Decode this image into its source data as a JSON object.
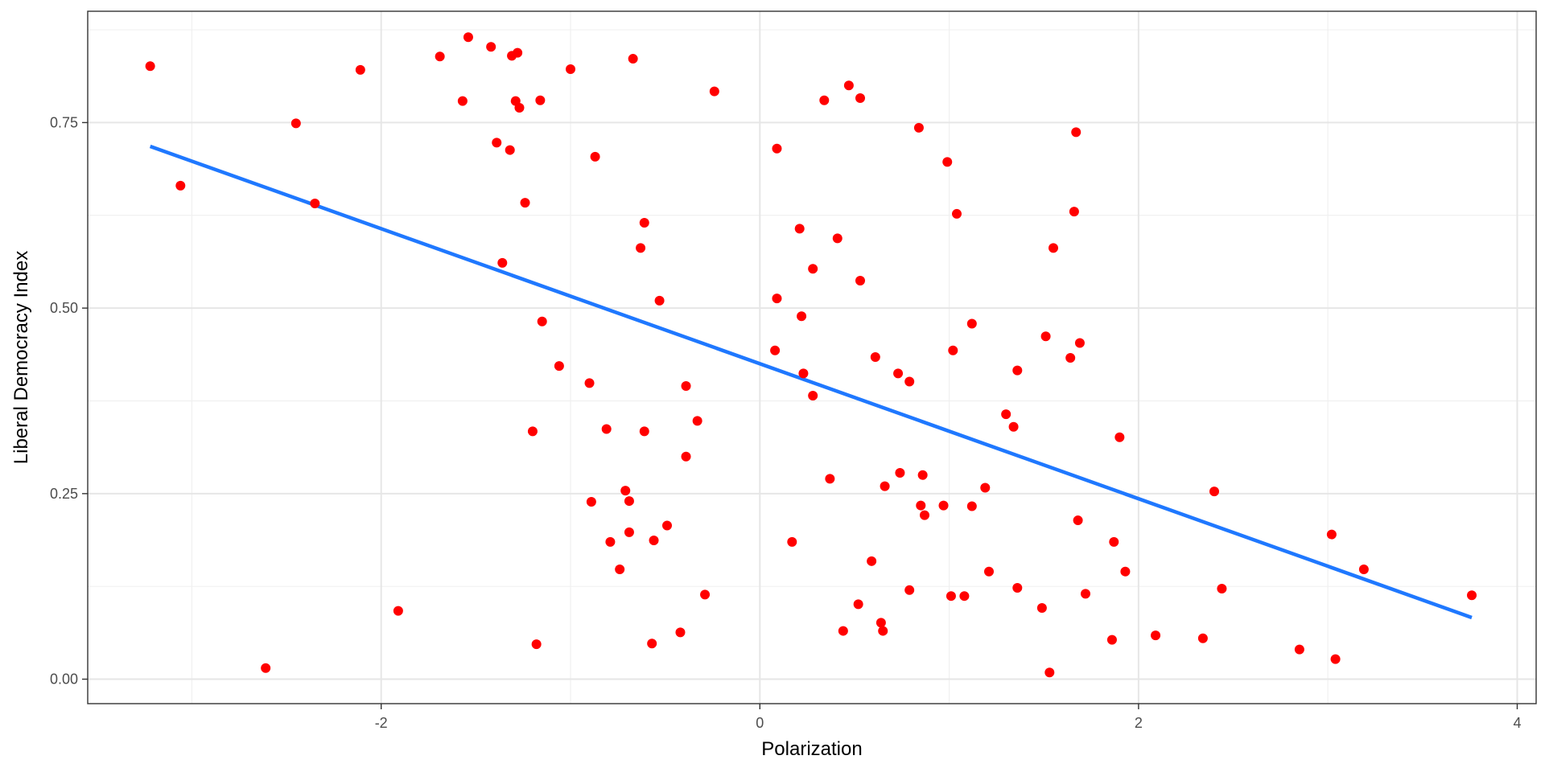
{
  "chart_data": {
    "type": "scatter",
    "xlabel": "Polarization",
    "ylabel": "Liberal Democracy Index",
    "xlim": [
      -3.55,
      4.1
    ],
    "ylim": [
      -0.033,
      0.9
    ],
    "x_ticks": [
      -2,
      0,
      2,
      4
    ],
    "x_tick_labels": [
      "-2",
      "0",
      "2",
      "4"
    ],
    "y_ticks": [
      0,
      0.25,
      0.5,
      0.75
    ],
    "y_tick_labels": [
      "0.00",
      "0.25",
      "0.50",
      "0.75"
    ],
    "grid": true,
    "point_color": "#ff0000",
    "line_color": "#1f78ff",
    "trend_line": {
      "x": [
        -3.22,
        3.76
      ],
      "y": [
        0.718,
        0.083
      ]
    },
    "points": [
      {
        "x": -3.22,
        "y": 0.826
      },
      {
        "x": -3.06,
        "y": 0.665
      },
      {
        "x": -2.61,
        "y": 0.015
      },
      {
        "x": -2.45,
        "y": 0.749
      },
      {
        "x": -2.35,
        "y": 0.641
      },
      {
        "x": -2.11,
        "y": 0.821
      },
      {
        "x": -1.91,
        "y": 0.092
      },
      {
        "x": -1.69,
        "y": 0.839
      },
      {
        "x": -1.57,
        "y": 0.779
      },
      {
        "x": -1.54,
        "y": 0.865
      },
      {
        "x": -1.42,
        "y": 0.852
      },
      {
        "x": -1.39,
        "y": 0.723
      },
      {
        "x": -1.36,
        "y": 0.561
      },
      {
        "x": -1.32,
        "y": 0.713
      },
      {
        "x": -1.31,
        "y": 0.84
      },
      {
        "x": -1.29,
        "y": 0.779
      },
      {
        "x": -1.28,
        "y": 0.844
      },
      {
        "x": -1.27,
        "y": 0.77
      },
      {
        "x": -1.24,
        "y": 0.642
      },
      {
        "x": -1.2,
        "y": 0.334
      },
      {
        "x": -1.18,
        "y": 0.047
      },
      {
        "x": -1.16,
        "y": 0.78
      },
      {
        "x": -1.15,
        "y": 0.482
      },
      {
        "x": -1.06,
        "y": 0.422
      },
      {
        "x": -1.0,
        "y": 0.822
      },
      {
        "x": -0.9,
        "y": 0.399
      },
      {
        "x": -0.89,
        "y": 0.239
      },
      {
        "x": -0.87,
        "y": 0.704
      },
      {
        "x": -0.81,
        "y": 0.337
      },
      {
        "x": -0.79,
        "y": 0.185
      },
      {
        "x": -0.74,
        "y": 0.148
      },
      {
        "x": -0.71,
        "y": 0.254
      },
      {
        "x": -0.69,
        "y": 0.24
      },
      {
        "x": -0.69,
        "y": 0.198
      },
      {
        "x": -0.67,
        "y": 0.836
      },
      {
        "x": -0.63,
        "y": 0.581
      },
      {
        "x": -0.61,
        "y": 0.615
      },
      {
        "x": -0.61,
        "y": 0.334
      },
      {
        "x": -0.57,
        "y": 0.048
      },
      {
        "x": -0.56,
        "y": 0.187
      },
      {
        "x": -0.53,
        "y": 0.51
      },
      {
        "x": -0.49,
        "y": 0.207
      },
      {
        "x": -0.42,
        "y": 0.063
      },
      {
        "x": -0.39,
        "y": 0.395
      },
      {
        "x": -0.39,
        "y": 0.3
      },
      {
        "x": -0.33,
        "y": 0.348
      },
      {
        "x": -0.29,
        "y": 0.114
      },
      {
        "x": -0.24,
        "y": 0.792
      },
      {
        "x": 0.08,
        "y": 0.443
      },
      {
        "x": 0.09,
        "y": 0.513
      },
      {
        "x": 0.09,
        "y": 0.715
      },
      {
        "x": 0.17,
        "y": 0.185
      },
      {
        "x": 0.21,
        "y": 0.607
      },
      {
        "x": 0.22,
        "y": 0.489
      },
      {
        "x": 0.23,
        "y": 0.412
      },
      {
        "x": 0.28,
        "y": 0.553
      },
      {
        "x": 0.28,
        "y": 0.382
      },
      {
        "x": 0.34,
        "y": 0.78
      },
      {
        "x": 0.37,
        "y": 0.27
      },
      {
        "x": 0.41,
        "y": 0.594
      },
      {
        "x": 0.44,
        "y": 0.065
      },
      {
        "x": 0.47,
        "y": 0.8
      },
      {
        "x": 0.52,
        "y": 0.101
      },
      {
        "x": 0.53,
        "y": 0.783
      },
      {
        "x": 0.53,
        "y": 0.537
      },
      {
        "x": 0.59,
        "y": 0.159
      },
      {
        "x": 0.61,
        "y": 0.434
      },
      {
        "x": 0.64,
        "y": 0.076
      },
      {
        "x": 0.65,
        "y": 0.065
      },
      {
        "x": 0.66,
        "y": 0.26
      },
      {
        "x": 0.73,
        "y": 0.412
      },
      {
        "x": 0.74,
        "y": 0.278
      },
      {
        "x": 0.79,
        "y": 0.401
      },
      {
        "x": 0.79,
        "y": 0.12
      },
      {
        "x": 0.84,
        "y": 0.743
      },
      {
        "x": 0.85,
        "y": 0.234
      },
      {
        "x": 0.86,
        "y": 0.275
      },
      {
        "x": 0.87,
        "y": 0.221
      },
      {
        "x": 0.97,
        "y": 0.234
      },
      {
        "x": 0.99,
        "y": 0.697
      },
      {
        "x": 1.01,
        "y": 0.112
      },
      {
        "x": 1.02,
        "y": 0.443
      },
      {
        "x": 1.04,
        "y": 0.627
      },
      {
        "x": 1.08,
        "y": 0.112
      },
      {
        "x": 1.12,
        "y": 0.479
      },
      {
        "x": 1.12,
        "y": 0.233
      },
      {
        "x": 1.19,
        "y": 0.258
      },
      {
        "x": 1.21,
        "y": 0.145
      },
      {
        "x": 1.3,
        "y": 0.357
      },
      {
        "x": 1.34,
        "y": 0.34
      },
      {
        "x": 1.36,
        "y": 0.416
      },
      {
        "x": 1.36,
        "y": 0.123
      },
      {
        "x": 1.49,
        "y": 0.096
      },
      {
        "x": 1.51,
        "y": 0.462
      },
      {
        "x": 1.53,
        "y": 0.009
      },
      {
        "x": 1.55,
        "y": 0.581
      },
      {
        "x": 1.64,
        "y": 0.433
      },
      {
        "x": 1.66,
        "y": 0.63
      },
      {
        "x": 1.67,
        "y": 0.737
      },
      {
        "x": 1.68,
        "y": 0.214
      },
      {
        "x": 1.69,
        "y": 0.453
      },
      {
        "x": 1.72,
        "y": 0.115
      },
      {
        "x": 1.86,
        "y": 0.053
      },
      {
        "x": 1.87,
        "y": 0.185
      },
      {
        "x": 1.9,
        "y": 0.326
      },
      {
        "x": 1.93,
        "y": 0.145
      },
      {
        "x": 2.09,
        "y": 0.059
      },
      {
        "x": 2.34,
        "y": 0.055
      },
      {
        "x": 2.4,
        "y": 0.253
      },
      {
        "x": 2.44,
        "y": 0.122
      },
      {
        "x": 2.85,
        "y": 0.04
      },
      {
        "x": 3.02,
        "y": 0.195
      },
      {
        "x": 3.04,
        "y": 0.027
      },
      {
        "x": 3.19,
        "y": 0.148
      },
      {
        "x": 3.76,
        "y": 0.113
      }
    ]
  }
}
